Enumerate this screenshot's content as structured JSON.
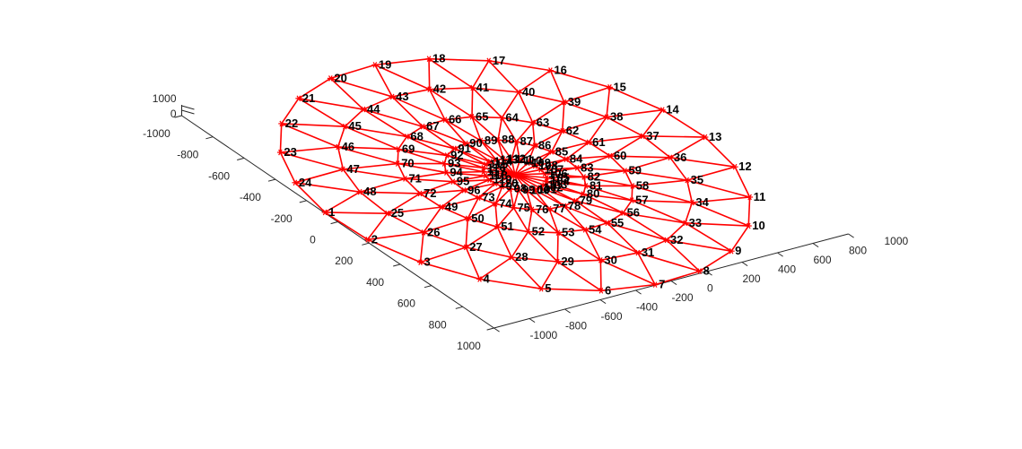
{
  "chart_data": {
    "type": "scatter",
    "title": "",
    "xlabel": "",
    "ylabel": "",
    "zlabel": "",
    "xlim": [
      -1000,
      1000
    ],
    "ylim": [
      -1000,
      1000
    ],
    "zlim": [
      0,
      1000
    ],
    "x_ticks": [
      -1000,
      -800,
      -600,
      -400,
      -200,
      0,
      200,
      400,
      600,
      800,
      1000
    ],
    "y_ticks": [
      -1000,
      -800,
      -600,
      -400,
      -200,
      0,
      200,
      400,
      600,
      800,
      1000
    ],
    "z_ticks": [
      0,
      1000
    ],
    "x_tick_labels": [
      "-1000",
      "-800",
      "-600",
      "-400",
      "-200",
      "0",
      "200",
      "400",
      "600",
      "800",
      "1000"
    ],
    "y_tick_labels": [
      "-1000",
      "-800",
      "-600",
      "-400",
      "-200",
      "0",
      "200",
      "400",
      "600",
      "800",
      "1000"
    ],
    "z_tick_labels": [
      "0",
      "1000"
    ],
    "grid": false,
    "legend": "none",
    "member_color": "#ff0000",
    "node_marker": "asterisk",
    "series": [
      {
        "ring_radius": 1000,
        "node_ids": [
          1,
          2,
          3,
          4,
          5,
          6,
          7,
          8,
          9,
          10,
          11,
          12,
          13,
          14,
          15,
          16,
          17,
          18,
          19,
          20,
          21,
          22,
          23,
          24
        ],
        "start_angle_deg": 265,
        "direction": "ccw"
      },
      {
        "ring_radius": 750,
        "node_ids": [
          25,
          26,
          27,
          28,
          29,
          30,
          31,
          32,
          33,
          34,
          35,
          36,
          37,
          38,
          39,
          40,
          41,
          42,
          43,
          44,
          45,
          46,
          47,
          48
        ],
        "start_angle_deg": 272.5,
        "direction": "ccw"
      },
      {
        "ring_radius": 500,
        "node_ids": [
          49,
          50,
          51,
          52,
          53,
          54,
          55,
          56,
          57,
          58,
          59,
          60,
          61,
          62,
          63,
          64,
          65,
          66,
          67,
          68,
          69,
          70,
          71,
          72
        ],
        "start_angle_deg": 280,
        "direction": "ccw"
      },
      {
        "ring_radius": 300,
        "node_ids": [
          73,
          74,
          75,
          76,
          77,
          78,
          79,
          80,
          81,
          82,
          83,
          84,
          85,
          86,
          87,
          88,
          89,
          90,
          91,
          92,
          93,
          94,
          95,
          96
        ],
        "start_angle_deg": 287.5,
        "direction": "ccw"
      },
      {
        "ring_radius": 135,
        "node_ids": [
          97,
          98,
          99,
          100,
          101,
          102,
          103,
          104,
          105,
          106,
          107,
          108,
          109,
          110,
          111,
          112,
          113,
          114,
          115,
          116,
          117,
          118,
          119,
          120
        ],
        "start_angle_deg": 295,
        "direction": "ccw"
      },
      {
        "ring_radius": 0,
        "node_ids": []
      }
    ]
  }
}
